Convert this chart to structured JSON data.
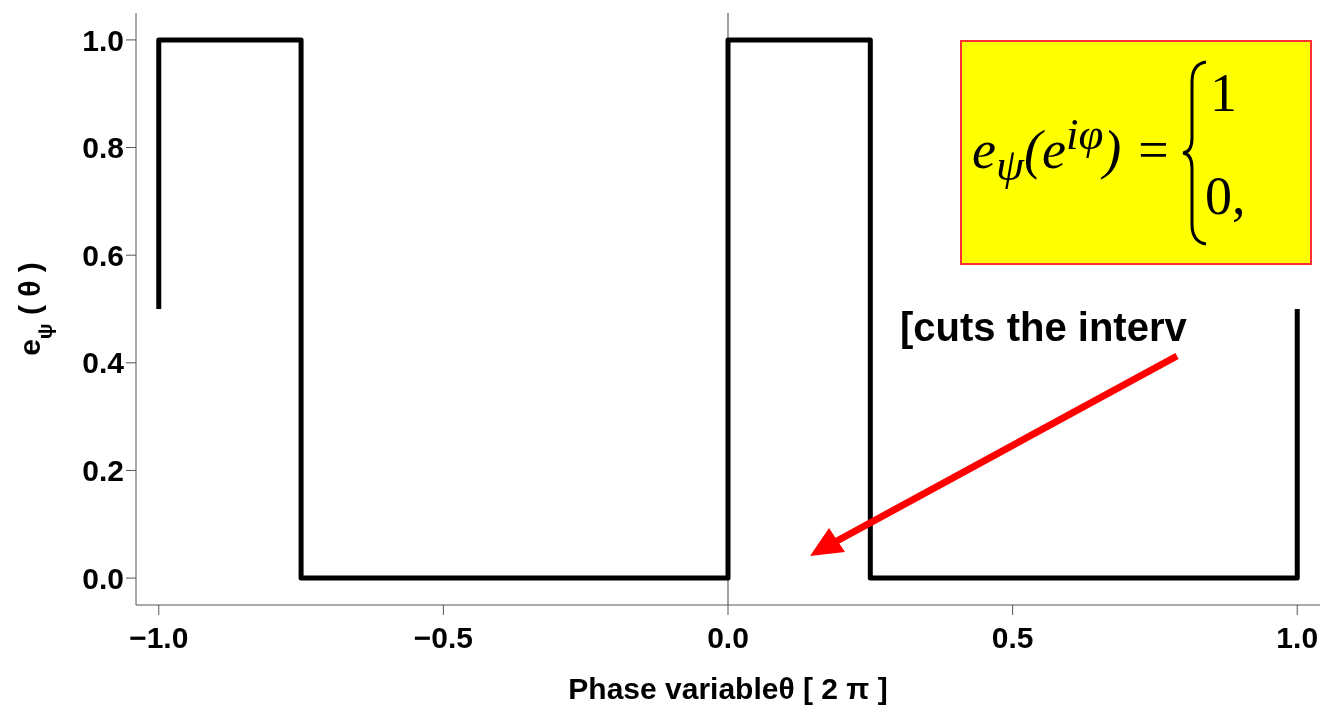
{
  "chart_data": {
    "type": "line",
    "xlabel": "Phase variableθ [ 2 π ]",
    "ylabel": "e$_{ψ}$ ( θ )",
    "x": [
      -1,
      -1,
      -0.75,
      -0.75,
      0,
      0,
      0.25,
      0.25,
      1,
      1
    ],
    "series": [
      {
        "color": "#000000",
        "values": [
          0.5,
          1,
          1,
          0,
          0,
          1,
          1,
          0,
          0,
          0.5
        ]
      }
    ],
    "xlim": [
      -1.04,
      1.04
    ],
    "ylim": [
      -0.05,
      1.05
    ],
    "xticks": [
      {
        "value": -1,
        "label": "−1.0"
      },
      {
        "value": -0.5,
        "label": "−0.5"
      },
      {
        "value": 0,
        "label": "0.0"
      },
      {
        "value": 0.5,
        "label": "0.5"
      },
      {
        "value": 1,
        "label": "1.0"
      }
    ],
    "yticks": [
      {
        "value": 0,
        "label": "0.0"
      },
      {
        "value": 0.2,
        "label": "0.2"
      },
      {
        "value": 0.4,
        "label": "0.4"
      },
      {
        "value": 0.6,
        "label": "0.6"
      },
      {
        "value": 0.8,
        "label": "0.8"
      },
      {
        "value": 1,
        "label": "1.0"
      }
    ],
    "ref_lines": [
      {
        "axis": "x",
        "value": 0,
        "color": "#808080"
      }
    ],
    "annotations": [
      "e$_{ψ}$(e$^{iφ}$) =",
      "1",
      "0,",
      "[cuts the interv"
    ],
    "marker": "none",
    "line_style": "solid"
  }
}
